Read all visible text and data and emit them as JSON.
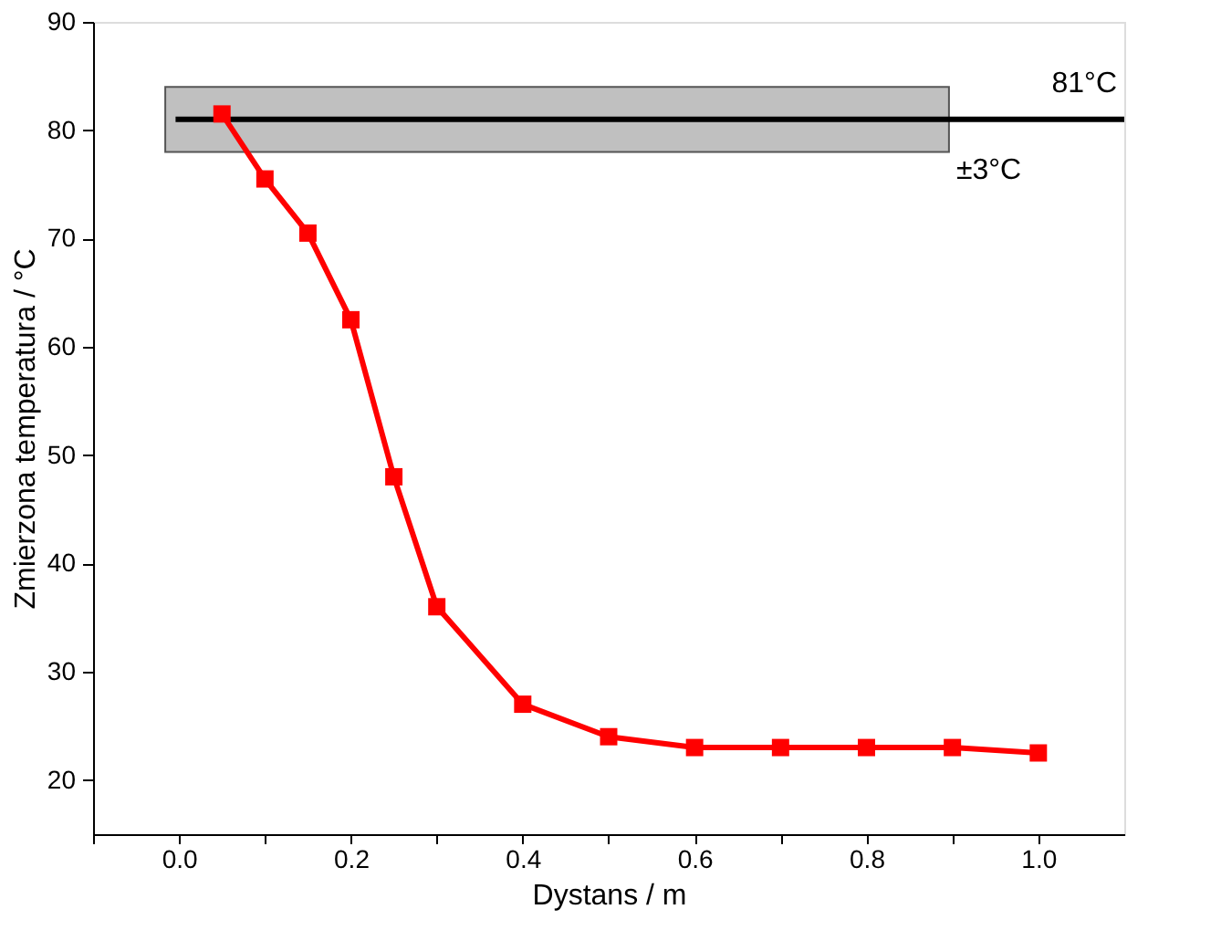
{
  "chart_data": {
    "type": "line",
    "xlabel": "Dystans / m",
    "ylabel": "Zmierzona temperatura / °C",
    "x": [
      0.05,
      0.1,
      0.15,
      0.2,
      0.25,
      0.3,
      0.4,
      0.5,
      0.6,
      0.7,
      0.8,
      0.9,
      1.0
    ],
    "series": [
      {
        "color": "#ff0000",
        "values": [
          81.5,
          75.5,
          70.5,
          62.5,
          48,
          36,
          27,
          24,
          23,
          23,
          23,
          23,
          22.5
        ]
      }
    ],
    "xlim": [
      -0.1,
      1.1
    ],
    "xticks": [
      {
        "value": -0.1,
        "label": null
      },
      {
        "value": 0,
        "label": "0.0"
      },
      {
        "value": 0.1,
        "label": null
      },
      {
        "value": 0.2,
        "label": "0.2"
      },
      {
        "value": 0.3,
        "label": null
      },
      {
        "value": 0.4,
        "label": "0.4"
      },
      {
        "value": 0.5,
        "label": null
      },
      {
        "value": 0.6,
        "label": "0.6"
      },
      {
        "value": 0.7,
        "label": null
      },
      {
        "value": 0.8,
        "label": "0.8"
      },
      {
        "value": 0.9,
        "label": null
      },
      {
        "value": 1.0,
        "label": "1.0"
      }
    ],
    "ylim": [
      15,
      90
    ],
    "yticks": [
      20,
      30,
      40,
      50,
      60,
      70,
      80,
      90
    ],
    "ref_lines": [
      {
        "axis": "y",
        "value": 81,
        "label": "81°C",
        "color": "#000000"
      }
    ],
    "bands": [
      {
        "axis": "y",
        "from": 78,
        "to": 84,
        "label": "±3°C",
        "color": "#c0c0c0"
      }
    ],
    "marker": "square",
    "line_style": "solid",
    "grid": false
  }
}
